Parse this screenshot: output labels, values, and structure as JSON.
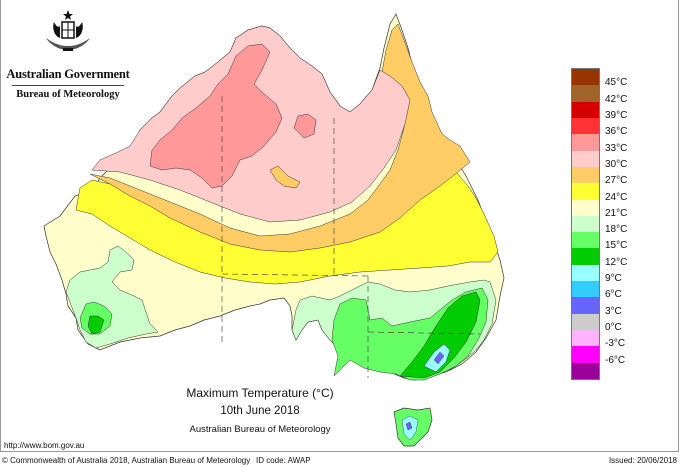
{
  "header": {
    "government": "Australian Government",
    "agency": "Bureau of Meteorology",
    "logo_icon": "commonwealth-coat-of-arms-icon"
  },
  "title": {
    "main": "Maximum Temperature (°C)",
    "date": "10th June 2018",
    "source": "Australian Bureau of Meteorology"
  },
  "footer": {
    "url": "http://www.bom.gov.au",
    "copyright": "© Commonwealth of Australia 2018, Australian Bureau of Meteorology",
    "id_code": "ID code: AWAP",
    "issued": "Issued: 20/06/2018"
  },
  "legend": {
    "swatches": [
      {
        "color": "#993300"
      },
      {
        "color": "#a0632a"
      },
      {
        "color": "#d40000"
      },
      {
        "color": "#ff3333"
      },
      {
        "color": "#ff9999"
      },
      {
        "color": "#ffcccc"
      },
      {
        "color": "#ffcc66"
      },
      {
        "color": "#ffff33"
      },
      {
        "color": "#ffffcc"
      },
      {
        "color": "#ccffcc"
      },
      {
        "color": "#66ff66"
      },
      {
        "color": "#00cc00"
      },
      {
        "color": "#99ffff"
      },
      {
        "color": "#33ccff"
      },
      {
        "color": "#6666ff"
      },
      {
        "color": "#cccccc"
      },
      {
        "color": "#ffb3ff"
      },
      {
        "color": "#ff00ff"
      },
      {
        "color": "#990099"
      }
    ],
    "labels": [
      "45°C",
      "42°C",
      "39°C",
      "36°C",
      "33°C",
      "30°C",
      "27°C",
      "24°C",
      "21°C",
      "18°C",
      "15°C",
      "12°C",
      "9°C",
      "6°C",
      "3°C",
      "0°C",
      "-3°C",
      "-6°C"
    ]
  },
  "map_regions": {
    "northwest_interior": "33–36°C",
    "north_central": "30–33°C",
    "cape_york_and_east_qld": "27–30°C",
    "central_band": "24–27°C",
    "southern_interior": "21–24°C",
    "southwest_wa": "18–21°C",
    "southeast_nsw_vic": "15–18°C",
    "eastern_highlands": "12–15°C",
    "alpine_and_tasmania_highlands": "6–12°C"
  }
}
